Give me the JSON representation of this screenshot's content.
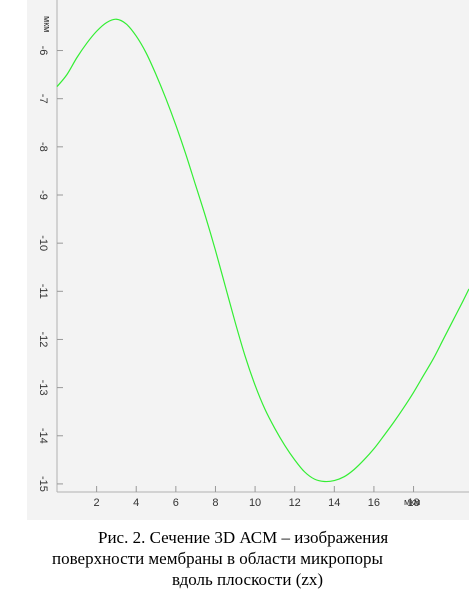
{
  "chart_data": {
    "type": "line",
    "title": "",
    "xlabel": "мкм",
    "ylabel": "мкм",
    "xlim": [
      0,
      20.8
    ],
    "ylim": [
      -15.5,
      -5.2
    ],
    "x_ticks": [
      2,
      4,
      6,
      8,
      10,
      12,
      14,
      16,
      18
    ],
    "x_tick_labels": [
      "2",
      "4",
      "6",
      "8",
      "10",
      "12",
      "14",
      "16",
      "18"
    ],
    "y_ticks": [
      -6,
      -7,
      -8,
      -9,
      -10,
      -11,
      -12,
      -13,
      -14,
      -15
    ],
    "y_tick_labels": [
      "-6",
      "-7",
      "-8",
      "-9",
      "-10",
      "-11",
      "-12",
      "-13",
      "-14",
      "-15"
    ],
    "grid": false,
    "background": "#f3f3f3",
    "line_color": "#33ee33",
    "series": [
      {
        "x": [
          0,
          0.5,
          1,
          1.5,
          2,
          2.5,
          3,
          3.5,
          4,
          4.5,
          5,
          5.5,
          6,
          6.5,
          7,
          7.5,
          8,
          8.5,
          9,
          9.5,
          10,
          10.5,
          11,
          11.5,
          12,
          12.5,
          13,
          13.5,
          14,
          14.5,
          15,
          15.5,
          16,
          16.5,
          17,
          17.5,
          18,
          18.5,
          19,
          19.5,
          20,
          20.5,
          20.8
        ],
        "y": [
          -6.75,
          -6.5,
          -6.15,
          -5.85,
          -5.6,
          -5.42,
          -5.35,
          -5.45,
          -5.7,
          -6.05,
          -6.5,
          -7.0,
          -7.55,
          -8.15,
          -8.8,
          -9.45,
          -10.15,
          -10.9,
          -11.65,
          -12.35,
          -12.95,
          -13.45,
          -13.85,
          -14.2,
          -14.5,
          -14.75,
          -14.9,
          -14.95,
          -14.93,
          -14.85,
          -14.7,
          -14.5,
          -14.27,
          -14.0,
          -13.72,
          -13.42,
          -13.1,
          -12.75,
          -12.4,
          -12.0,
          -11.6,
          -11.2,
          -10.95
        ]
      }
    ]
  },
  "caption": {
    "line1": "Рис. 2. Сечение 3D АСМ – изображения",
    "line2": "поверхности мембраны в  области микропоры",
    "line3": "вдоль плоскости (zx)"
  }
}
